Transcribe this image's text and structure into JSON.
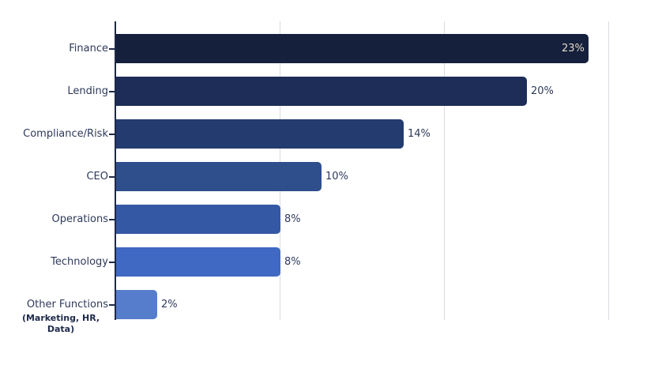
{
  "chart_data": {
    "type": "bar",
    "orientation": "horizontal",
    "title": "",
    "xlabel": "",
    "ylabel": "",
    "categories": [
      "Finance",
      "Lending",
      "Compliance/Risk",
      "CEO",
      "Operations",
      "Technology",
      "Other Functions"
    ],
    "category_notes": {
      "Other Functions": "(Marketing, HR, Data)"
    },
    "values": [
      23,
      20,
      14,
      10,
      8,
      8,
      2
    ],
    "value_labels": [
      "23%",
      "20%",
      "14%",
      "10%",
      "8%",
      "8%",
      "2%"
    ],
    "colors": [
      "#14203c",
      "#1d2d58",
      "#233b6e",
      "#2f4e8c",
      "#3558a5",
      "#3f69c2",
      "#557dcb"
    ],
    "xlim": [
      0,
      24
    ],
    "x_gridlines": [
      8,
      16,
      24
    ],
    "grid": true,
    "legend": null
  },
  "rows": [
    {
      "label": "Finance",
      "value_label": "23%",
      "value": 23,
      "color": "#14203c",
      "inside": true
    },
    {
      "label": "Lending",
      "value_label": "20%",
      "value": 20,
      "color": "#1d2d58",
      "inside": false
    },
    {
      "label": "Compliance/Risk",
      "value_label": "14%",
      "value": 14,
      "color": "#233b6e",
      "inside": false
    },
    {
      "label": "CEO",
      "value_label": "10%",
      "value": 10,
      "color": "#2f4e8c",
      "inside": false
    },
    {
      "label": "Operations",
      "value_label": "8%",
      "value": 8,
      "color": "#3558a5",
      "inside": false
    },
    {
      "label": "Technology",
      "value_label": "8%",
      "value": 8,
      "color": "#3f69c2",
      "inside": false
    },
    {
      "label": "Other Functions",
      "value_label": "2%",
      "value": 2,
      "color": "#557dcb",
      "inside": false
    }
  ],
  "other_sublabel": "(Marketing, HR, Data)"
}
